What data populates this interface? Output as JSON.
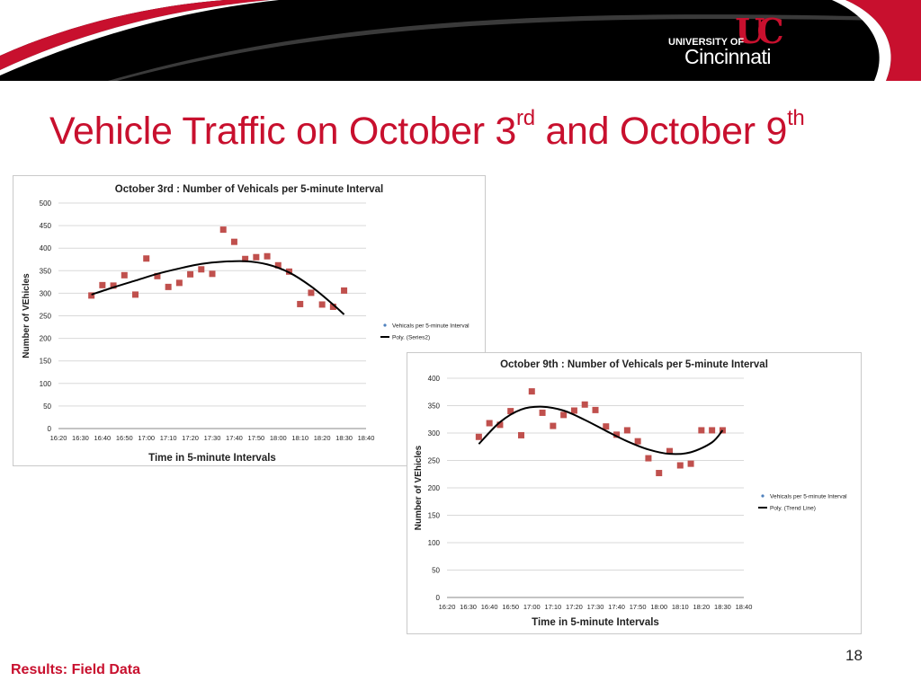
{
  "slide": {
    "title_main": "Vehicle Traffic on October 3",
    "title_sup1": "rd",
    "title_mid": " and October 9",
    "title_sup2": "th",
    "footer_label": "Results: Field Data",
    "page_number": "18"
  },
  "logo": {
    "university_of": "UNIVERSITY OF",
    "name": "Cincinnati",
    "monogram": "UC"
  },
  "colors": {
    "brand_red": "#c8102e",
    "banner_black": "#000000",
    "marker": "#c0504d",
    "trend": "#000000",
    "legend_marker": "#4f81bd"
  },
  "chart_data": [
    {
      "type": "scatter",
      "title": "October 3rd : Number of Vehicals per 5-minute Interval",
      "xlabel": "Time in 5-minute Intervals",
      "ylabel": "Number of VEhicles",
      "x_ticks": [
        "16:20",
        "16:30",
        "16:40",
        "16:50",
        "17:00",
        "17:10",
        "17:20",
        "17:30",
        "17:40",
        "17:50",
        "18:00",
        "18:10",
        "18:20",
        "18:30",
        "18:40"
      ],
      "y_ticks": [
        "0",
        "50",
        "100",
        "150",
        "200",
        "250",
        "300",
        "350",
        "400",
        "450",
        "500"
      ],
      "ylim": [
        0,
        500
      ],
      "xlim": [
        "16:20",
        "18:40"
      ],
      "grid": true,
      "legend_position": "right",
      "series": [
        {
          "name": "Vehicals per 5-minute Interval",
          "kind": "points",
          "points": [
            [
              "16:35",
              295
            ],
            [
              "16:40",
              318
            ],
            [
              "16:45",
              317
            ],
            [
              "16:50",
              340
            ],
            [
              "16:55",
              297
            ],
            [
              "17:00",
              377
            ],
            [
              "17:05",
              338
            ],
            [
              "17:10",
              314
            ],
            [
              "17:15",
              323
            ],
            [
              "17:20",
              342
            ],
            [
              "17:25",
              353
            ],
            [
              "17:30",
              343
            ],
            [
              "17:35",
              441
            ],
            [
              "17:40",
              414
            ],
            [
              "17:45",
              376
            ],
            [
              "17:50",
              380
            ],
            [
              "17:55",
              382
            ],
            [
              "18:00",
              362
            ],
            [
              "18:05",
              348
            ],
            [
              "18:10",
              276
            ],
            [
              "18:15",
              301
            ],
            [
              "18:20",
              275
            ],
            [
              "18:25",
              270
            ],
            [
              "18:30",
              306
            ]
          ]
        },
        {
          "name": "Poly. (Series2)",
          "kind": "trend",
          "points": [
            [
              "16:35",
              297
            ],
            [
              "16:45",
              313
            ],
            [
              "16:55",
              328
            ],
            [
              "17:05",
              343
            ],
            [
              "17:15",
              355
            ],
            [
              "17:25",
              365
            ],
            [
              "17:35",
              370
            ],
            [
              "17:45",
              371
            ],
            [
              "17:55",
              364
            ],
            [
              "18:05",
              346
            ],
            [
              "18:15",
              315
            ],
            [
              "18:25",
              275
            ],
            [
              "18:30",
              253
            ]
          ]
        }
      ]
    },
    {
      "type": "scatter",
      "title": "October 9th : Number of Vehicals per 5-minute Interval",
      "xlabel": "Time in 5-minute Intervals",
      "ylabel": "Number of VEhicles",
      "x_ticks": [
        "16:20",
        "16:30",
        "16:40",
        "16:50",
        "17:00",
        "17:10",
        "17:20",
        "17:30",
        "17:40",
        "17:50",
        "18:00",
        "18:10",
        "18:20",
        "18:30",
        "18:40"
      ],
      "y_ticks": [
        "0",
        "50",
        "100",
        "150",
        "200",
        "250",
        "300",
        "350",
        "400"
      ],
      "ylim": [
        0,
        400
      ],
      "xlim": [
        "16:20",
        "18:40"
      ],
      "grid": true,
      "legend_position": "right",
      "series": [
        {
          "name": "Vehicals per 5-minute Interval",
          "kind": "points",
          "points": [
            [
              "16:35",
              293
            ],
            [
              "16:40",
              318
            ],
            [
              "16:45",
              315
            ],
            [
              "16:50",
              340
            ],
            [
              "16:55",
              296
            ],
            [
              "17:00",
              376
            ],
            [
              "17:05",
              337
            ],
            [
              "17:10",
              313
            ],
            [
              "17:15",
              333
            ],
            [
              "17:20",
              341
            ],
            [
              "17:25",
              352
            ],
            [
              "17:30",
              342
            ],
            [
              "17:35",
              312
            ],
            [
              "17:40",
              297
            ],
            [
              "17:45",
              305
            ],
            [
              "17:50",
              285
            ],
            [
              "17:55",
              254
            ],
            [
              "18:00",
              227
            ],
            [
              "18:05",
              267
            ],
            [
              "18:10",
              241
            ],
            [
              "18:15",
              244
            ],
            [
              "18:20",
              305
            ],
            [
              "18:25",
              305
            ],
            [
              "18:30",
              305
            ]
          ]
        },
        {
          "name": "Poly. (Trend Line)",
          "kind": "trend",
          "points": [
            [
              "16:35",
              280
            ],
            [
              "16:45",
              320
            ],
            [
              "16:55",
              343
            ],
            [
              "17:05",
              348
            ],
            [
              "17:15",
              341
            ],
            [
              "17:25",
              324
            ],
            [
              "17:35",
              304
            ],
            [
              "17:45",
              285
            ],
            [
              "17:55",
              270
            ],
            [
              "18:05",
              262
            ],
            [
              "18:15",
              265
            ],
            [
              "18:25",
              283
            ],
            [
              "18:30",
              305
            ]
          ]
        }
      ]
    }
  ]
}
